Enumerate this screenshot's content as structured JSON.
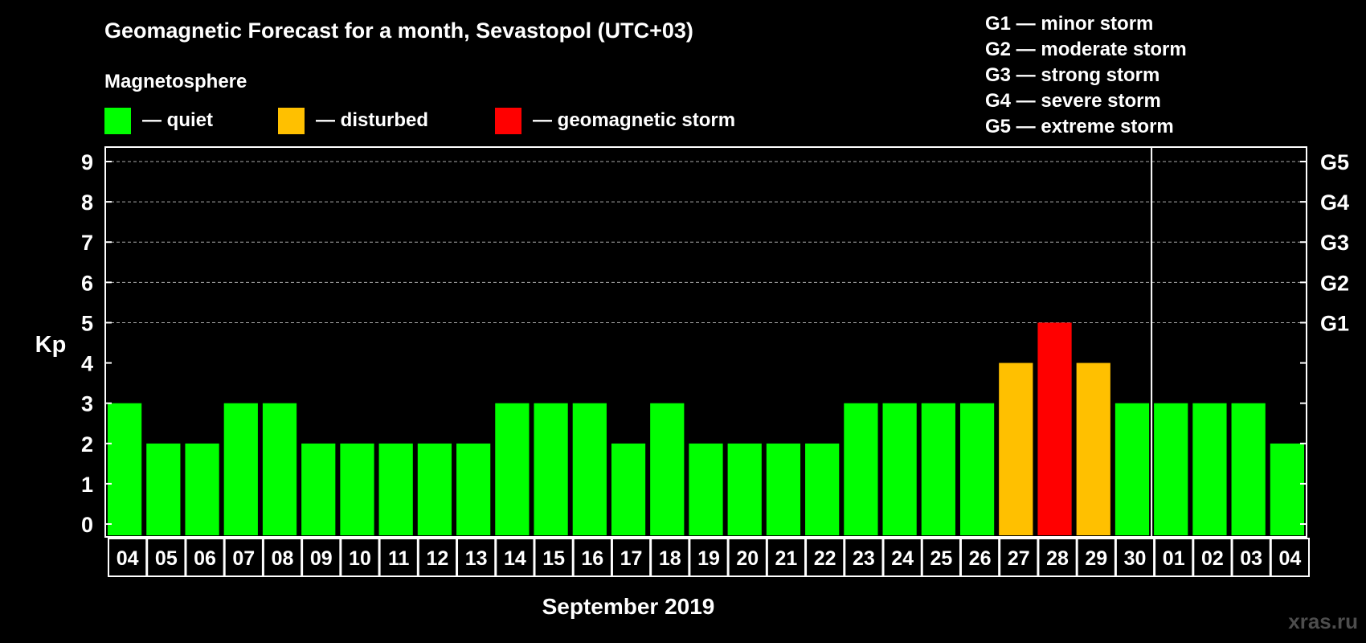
{
  "title": "Geomagnetic Forecast for a month, Sevastopol (UTC+03)",
  "legend": {
    "heading": "Magnetosphere",
    "items": [
      {
        "label": "— quiet",
        "color": "#00ff00"
      },
      {
        "label": "— disturbed",
        "color": "#ffc000"
      },
      {
        "label": "— geomagnetic storm",
        "color": "#ff0000"
      }
    ],
    "scale": [
      "G1 — minor storm",
      "G2 — moderate storm",
      "G3 — strong storm",
      "G4 — severe storm",
      "G5 — extreme storm"
    ]
  },
  "watermark": "xras.ru",
  "chart_data": {
    "type": "bar",
    "title": "Geomagnetic Forecast for a month, Sevastopol (UTC+03)",
    "xlabel": "September 2019",
    "ylabel": "Kp",
    "ylim": [
      0,
      9
    ],
    "yticks": [
      "0",
      "1",
      "2",
      "3",
      "4",
      "5",
      "6",
      "7",
      "8",
      "9"
    ],
    "right_ticks": [
      {
        "kp": 5,
        "label": "G1"
      },
      {
        "kp": 6,
        "label": "G2"
      },
      {
        "kp": 7,
        "label": "G3"
      },
      {
        "kp": 8,
        "label": "G4"
      },
      {
        "kp": 9,
        "label": "G5"
      }
    ],
    "categories": [
      "04",
      "05",
      "06",
      "07",
      "08",
      "09",
      "10",
      "11",
      "12",
      "13",
      "14",
      "15",
      "16",
      "17",
      "18",
      "19",
      "20",
      "21",
      "22",
      "23",
      "24",
      "25",
      "26",
      "27",
      "28",
      "29",
      "30",
      "01",
      "02",
      "03",
      "04"
    ],
    "values": [
      3,
      2,
      2,
      3,
      3,
      2,
      2,
      2,
      2,
      2,
      3,
      3,
      3,
      2,
      3,
      2,
      2,
      2,
      2,
      3,
      3,
      3,
      3,
      4,
      5,
      4,
      3,
      3,
      3,
      3,
      2
    ],
    "colors": {
      "quiet": "#00ff00",
      "disturbed": "#ffc000",
      "storm": "#ff0000"
    },
    "month_divider_after": "30",
    "grid": true
  }
}
